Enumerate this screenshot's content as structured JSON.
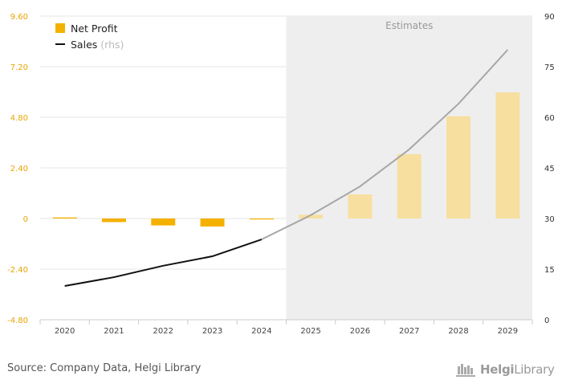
{
  "chart_data": {
    "type": "bar+line",
    "categories": [
      "2020",
      "2021",
      "2022",
      "2023",
      "2024",
      "2025",
      "2026",
      "2027",
      "2028",
      "2029"
    ],
    "series": [
      {
        "name": "Net Profit",
        "type": "bar",
        "axis": "left",
        "color": "#f5b100",
        "estimate_color": "#f7dfa0",
        "values": [
          0.05,
          -0.17,
          -0.33,
          -0.38,
          -0.02,
          0.18,
          1.14,
          3.05,
          4.85,
          5.98
        ]
      },
      {
        "name": "Sales",
        "name_suffix": "(rhs)",
        "type": "line",
        "axis": "right",
        "color": "#111111",
        "estimate_color": "#a6a6a6",
        "values": [
          10,
          12.6,
          16,
          18.8,
          23.8,
          31,
          39.5,
          50.5,
          64,
          80
        ]
      }
    ],
    "estimates_from_index": 5,
    "estimates_label": "Estimates",
    "y_left": {
      "min": -4.8,
      "max": 9.6,
      "ticks": [
        "9.60",
        "7.20",
        "4.80",
        "2.40",
        "0",
        "-2.40",
        "-4.80"
      ],
      "tick_values": [
        9.6,
        7.2,
        4.8,
        2.4,
        0,
        -2.4,
        -4.8
      ],
      "color": "#e8a500"
    },
    "y_right": {
      "min": 0,
      "max": 90,
      "ticks": [
        "90",
        "75",
        "60",
        "45",
        "30",
        "15",
        "0"
      ],
      "tick_values": [
        90,
        75,
        60,
        45,
        30,
        15,
        0
      ],
      "color": "#333333"
    },
    "grid": true,
    "legend_position": "top-left"
  },
  "footer": {
    "source": "Source: Company Data, Helgi Library",
    "logo_word1": "Helgi",
    "logo_word2": "Library"
  }
}
